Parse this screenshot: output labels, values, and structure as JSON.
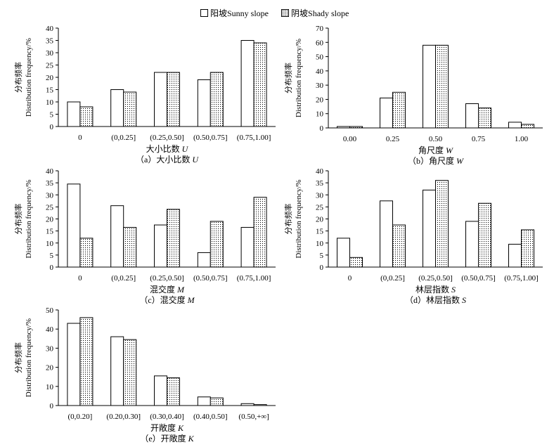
{
  "legend": {
    "sunny": "阳坡Sunny slope",
    "shady": "阴坡Shady slope"
  },
  "colors": {
    "sunny_fill": "#ffffff",
    "shady_fill": "dotted",
    "stroke": "#000000"
  },
  "ylabel_cn": "分布频率",
  "ylabel_en": "Distribution frequency/%",
  "chart_data": [
    {
      "id": "a",
      "type": "bar",
      "categories": [
        "0",
        "(0,0.25]",
        "(0.25,0.50]",
        "(0.50,0.75]",
        "(0.75,1.00]"
      ],
      "series": [
        {
          "name": "阳坡Sunny slope",
          "values": [
            10,
            15,
            22,
            19,
            35
          ]
        },
        {
          "name": "阴坡Shady slope",
          "values": [
            8,
            14,
            22,
            22,
            34
          ]
        }
      ],
      "ylim": [
        0,
        40
      ],
      "ytick_step": 5,
      "xlabel_cn": "大小比数",
      "xlabel_var": "U",
      "caption_prefix": "（a）大小比数",
      "caption_var": "U"
    },
    {
      "id": "b",
      "type": "bar",
      "categories": [
        "0.00",
        "0.25",
        "0.50",
        "0.75",
        "1.00"
      ],
      "series": [
        {
          "name": "阳坡Sunny slope",
          "values": [
            1,
            21,
            58,
            17,
            4
          ]
        },
        {
          "name": "阴坡Shady slope",
          "values": [
            1,
            25,
            58,
            14,
            2.5
          ]
        }
      ],
      "ylim": [
        0,
        70
      ],
      "ytick_step": 10,
      "xlabel_cn": "角尺度",
      "xlabel_var": "W",
      "caption_prefix": "（b）角尺度",
      "caption_var": "W"
    },
    {
      "id": "c",
      "type": "bar",
      "categories": [
        "0",
        "(0,0.25]",
        "(0.25,0.50]",
        "(0.50,0.75]",
        "(0.75,1.00]"
      ],
      "series": [
        {
          "name": "阳坡Sunny slope",
          "values": [
            34.5,
            25.5,
            17.5,
            6,
            16.5
          ]
        },
        {
          "name": "阴坡Shady slope",
          "values": [
            12,
            16.5,
            24,
            19,
            29
          ]
        }
      ],
      "ylim": [
        0,
        40
      ],
      "ytick_step": 5,
      "xlabel_cn": "混交度",
      "xlabel_var": "M",
      "caption_prefix": "（c）混交度",
      "caption_var": "M"
    },
    {
      "id": "d",
      "type": "bar",
      "categories": [
        "0",
        "(0,0.25]",
        "(0.25,0.50]",
        "(0.50,0.75]",
        "(0.75,1.00]"
      ],
      "series": [
        {
          "name": "阳坡Sunny slope",
          "values": [
            12,
            27.5,
            32,
            19,
            9.5
          ]
        },
        {
          "name": "阴坡Shady slope",
          "values": [
            4,
            17.5,
            36,
            26.5,
            15.5
          ]
        }
      ],
      "ylim": [
        0,
        40
      ],
      "ytick_step": 5,
      "xlabel_cn": "林层指数",
      "xlabel_var": "S",
      "caption_prefix": "（d）林层指数",
      "caption_var": "S"
    },
    {
      "id": "e",
      "type": "bar",
      "categories": [
        "(0,0.20]",
        "(0.20,0.30]",
        "(0.30,0.40]",
        "(0.40,0.50]",
        "(0.50,+∞]"
      ],
      "series": [
        {
          "name": "阳坡Sunny slope",
          "values": [
            43,
            36,
            15.5,
            4.5,
            1
          ]
        },
        {
          "name": "阴坡Shady slope",
          "values": [
            46,
            34.5,
            14.5,
            4,
            0.5
          ]
        }
      ],
      "ylim": [
        0,
        50
      ],
      "ytick_step": 10,
      "xlabel_cn": "开敞度",
      "xlabel_var": "K",
      "caption_prefix": "（e）开敞度",
      "caption_var": "K"
    }
  ]
}
